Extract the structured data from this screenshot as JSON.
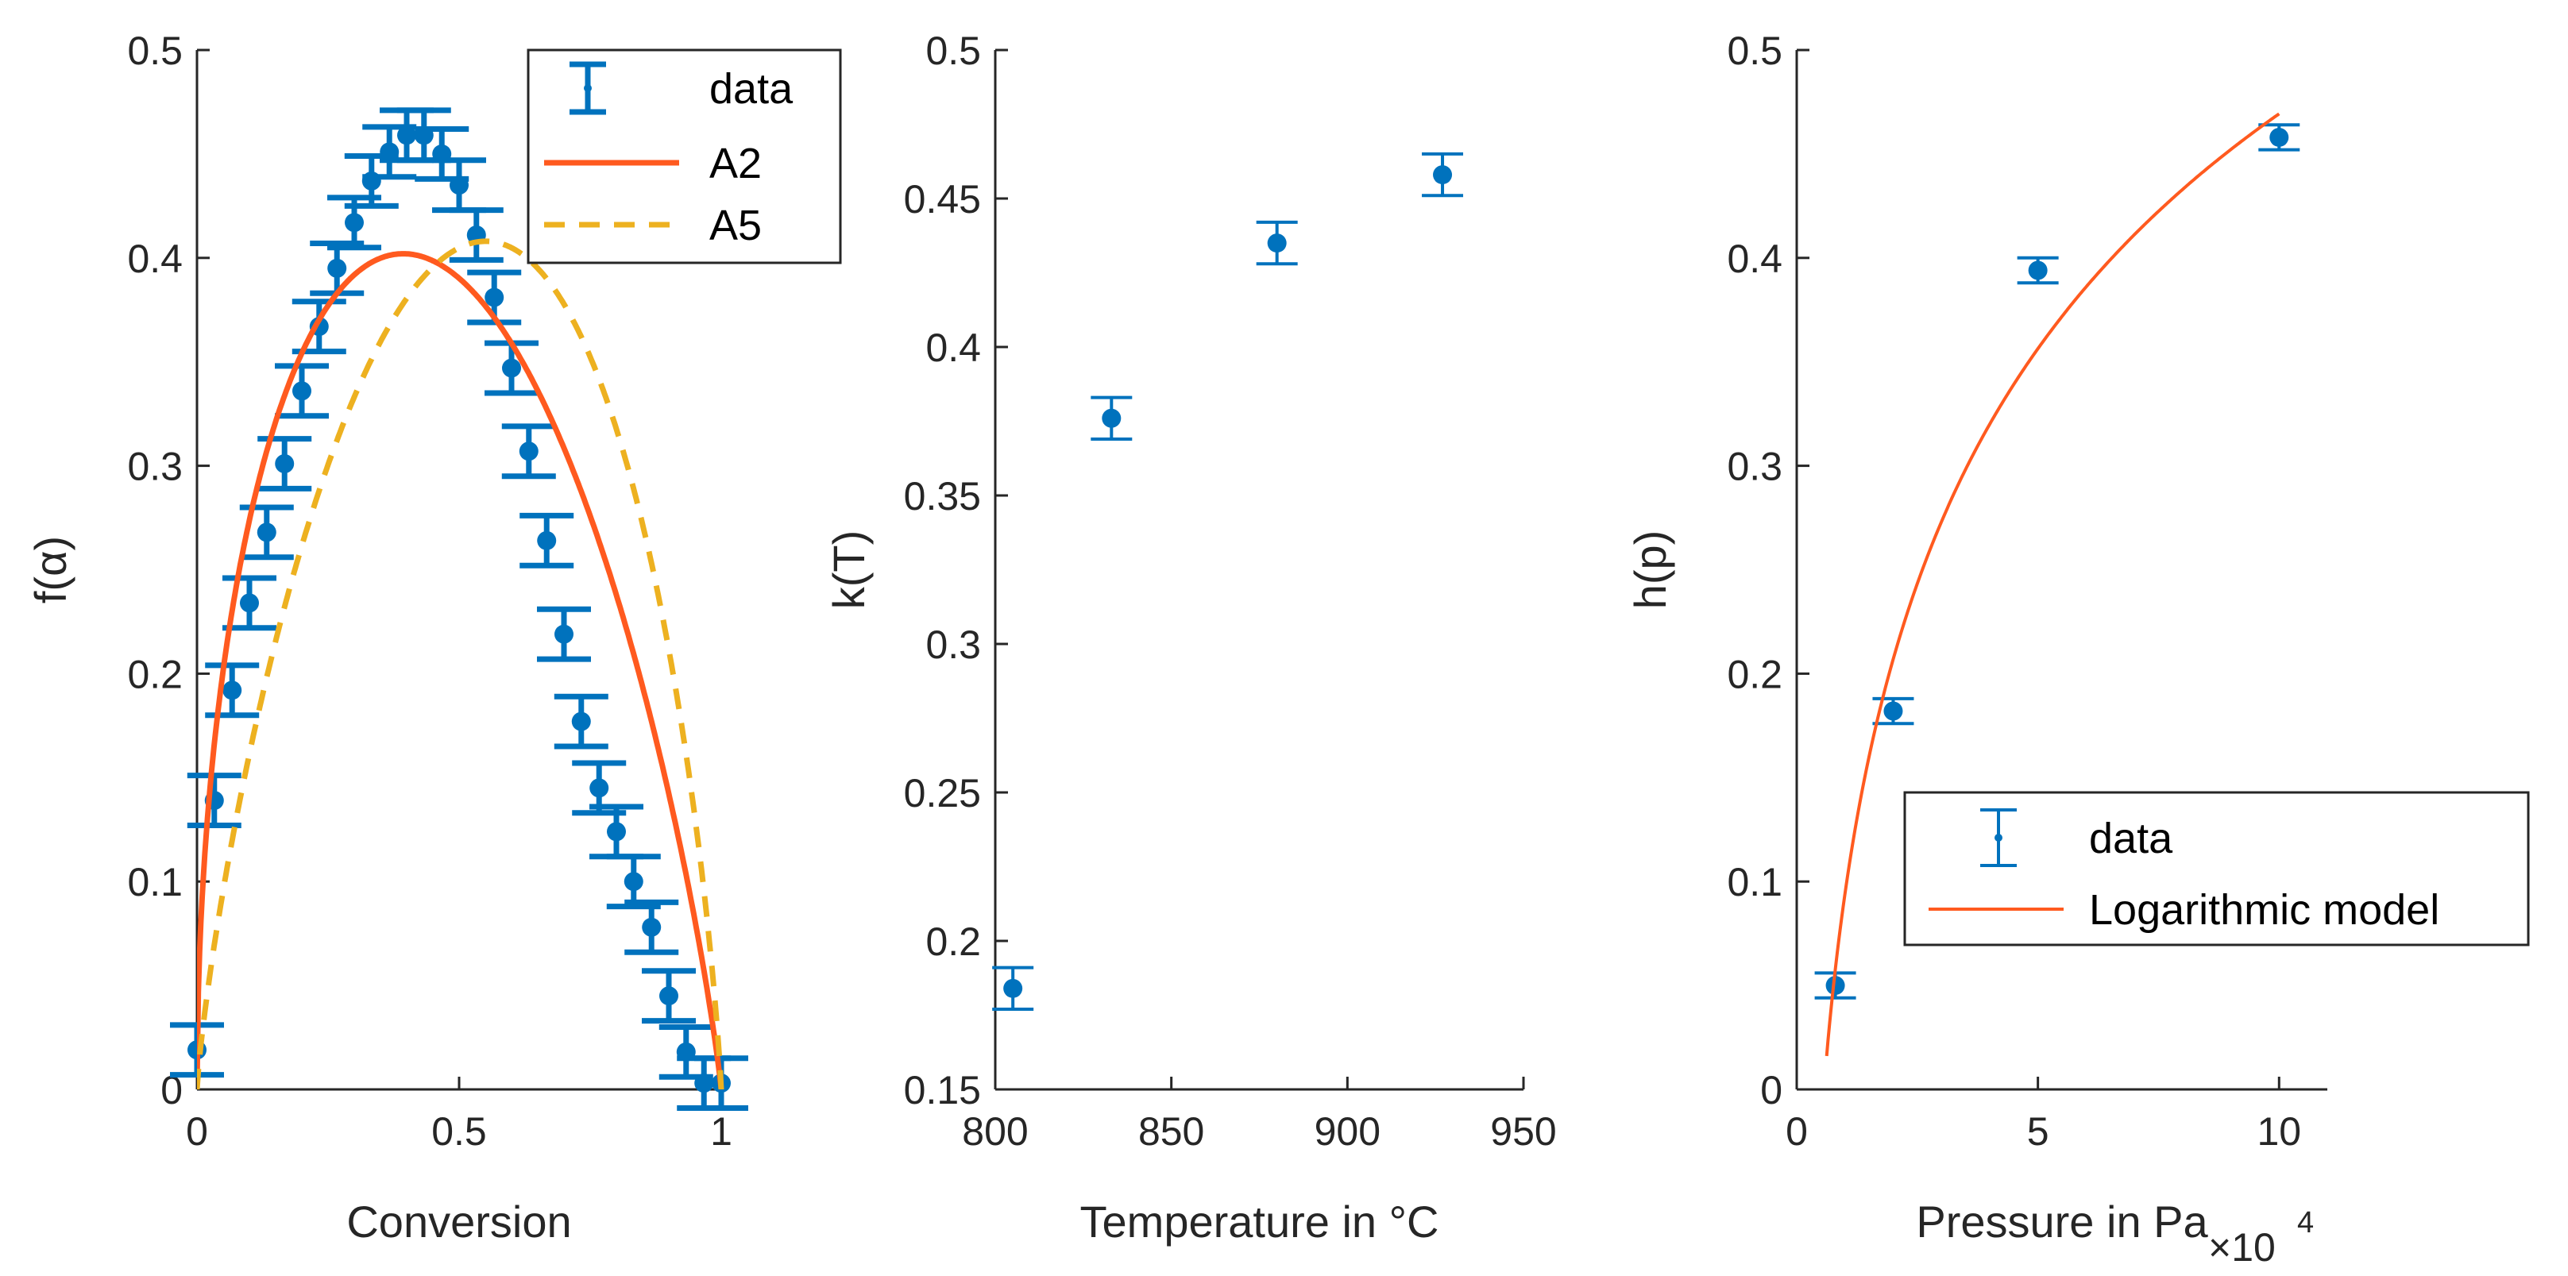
{
  "colors": {
    "data": "#0072BD",
    "a2": "#FF5A1F",
    "a5": "#EDB120",
    "model": "#FF5A1F",
    "axis": "#262626"
  },
  "chart_data": [
    {
      "type": "scatter",
      "xlabel": "Conversion",
      "ylabel": "f(α)",
      "xlim": [
        0,
        1
      ],
      "ylim": [
        0,
        0.5
      ],
      "xticks": [
        "0",
        "0.5",
        "1"
      ],
      "yticks": [
        "0",
        "0.1",
        "0.2",
        "0.3",
        "0.4",
        "0.5"
      ],
      "legend_placement": "top-right",
      "legend": [
        "data",
        "A2",
        "A5"
      ],
      "series": [
        {
          "name": "data",
          "type": "errorbar",
          "x": [
            0,
            0.033,
            0.067,
            0.1,
            0.133,
            0.167,
            0.2,
            0.233,
            0.267,
            0.3,
            0.333,
            0.367,
            0.4,
            0.433,
            0.467,
            0.5,
            0.533,
            0.567,
            0.6,
            0.633,
            0.667,
            0.7,
            0.733,
            0.767,
            0.8,
            0.833,
            0.867,
            0.9,
            0.933,
            0.967,
            1.0
          ],
          "y": [
            0.019,
            0.139,
            0.192,
            0.234,
            0.268,
            0.301,
            0.336,
            0.367,
            0.395,
            0.417,
            0.437,
            0.451,
            0.459,
            0.459,
            0.45,
            0.435,
            0.411,
            0.381,
            0.347,
            0.307,
            0.264,
            0.219,
            0.177,
            0.145,
            0.124,
            0.1,
            0.078,
            0.045,
            0.018,
            0.003,
            0.003
          ],
          "err": 0.012
        },
        {
          "name": "A2",
          "type": "curve",
          "n": 2
        },
        {
          "name": "A5",
          "type": "curve",
          "n": 5
        }
      ]
    },
    {
      "type": "scatter",
      "xlabel": "Temperature in °C",
      "ylabel": "k(T)",
      "xlim": [
        800,
        950
      ],
      "ylim": [
        0.15,
        0.5
      ],
      "xticks": [
        "800",
        "850",
        "900",
        "950"
      ],
      "yticks": [
        "0.15",
        "0.2",
        "0.25",
        "0.3",
        "0.35",
        "0.4",
        "0.45",
        "0.5"
      ],
      "series": [
        {
          "name": "data",
          "type": "errorbar",
          "x": [
            805,
            833,
            880,
            927
          ],
          "y": [
            0.184,
            0.376,
            0.435,
            0.458
          ],
          "err": 0.007
        }
      ]
    },
    {
      "type": "scatter",
      "xlabel": "Pressure in Pa",
      "x_exponent": "×10",
      "x_exponent_power": "4",
      "ylabel": "h(p)",
      "xlim": [
        0,
        11
      ],
      "ylim": [
        0,
        0.5
      ],
      "xticks": [
        "0",
        "5",
        "10"
      ],
      "yticks": [
        "0",
        "0.1",
        "0.2",
        "0.3",
        "0.4",
        "0.5"
      ],
      "legend_placement": "bottom-right",
      "legend": [
        "data",
        "Logarithmic model"
      ],
      "series": [
        {
          "name": "data",
          "type": "errorbar",
          "x": [
            0.8,
            2.0,
            5.0,
            10.0
          ],
          "y": [
            0.05,
            0.182,
            0.394,
            0.458
          ],
          "err": 0.006
        },
        {
          "name": "Logarithmic model",
          "type": "log-curve",
          "a": 0.163,
          "b": 0.094
        }
      ]
    }
  ]
}
